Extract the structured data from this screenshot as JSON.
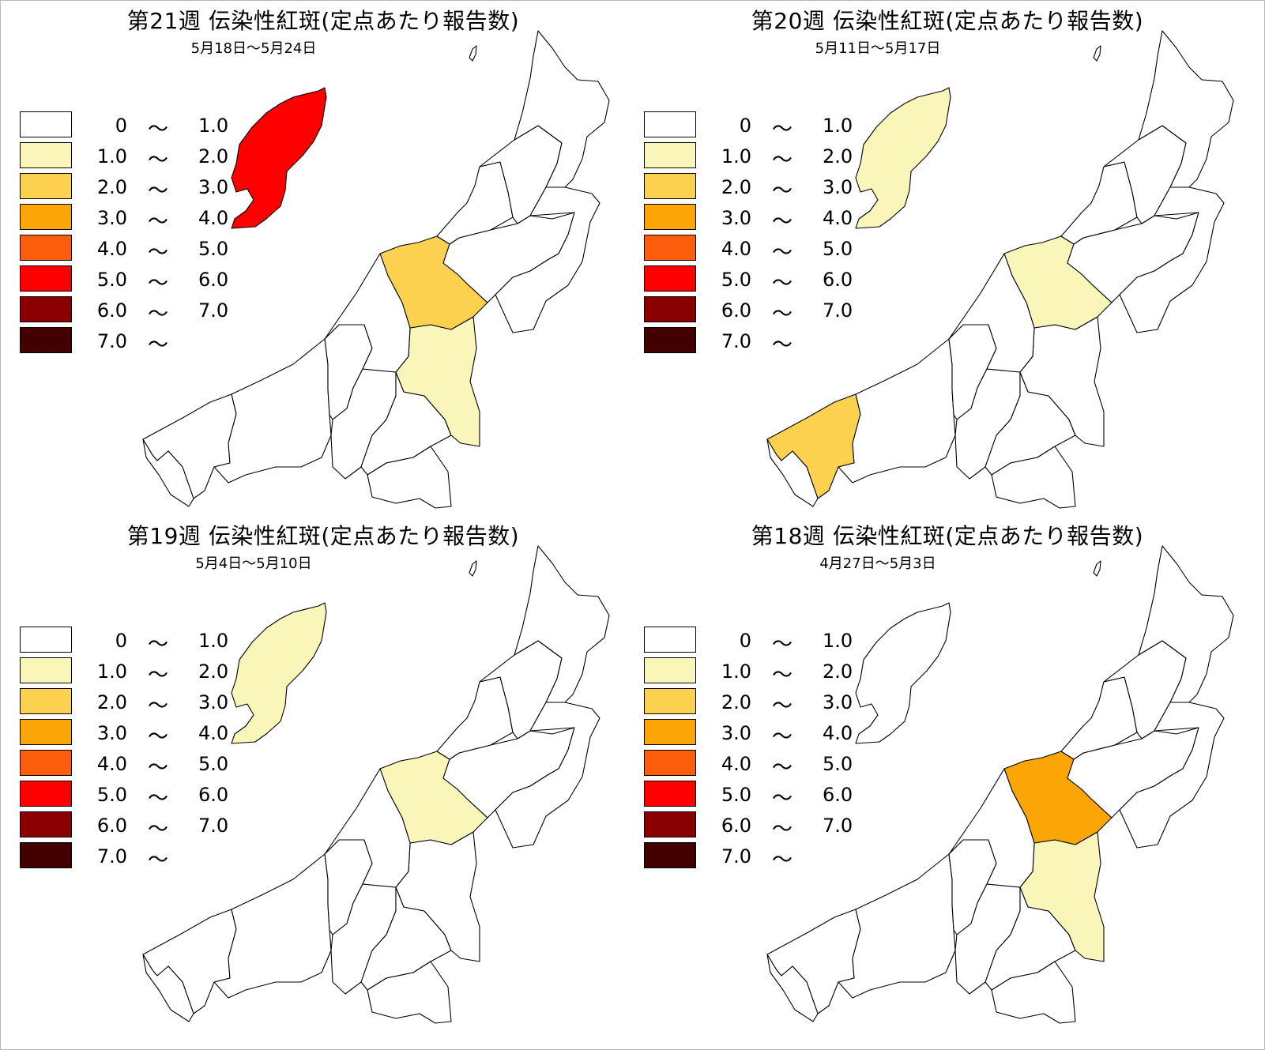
{
  "panels": [
    {
      "id": "w21",
      "title": "第21週 伝染性紅斑(定点あたり報告数)",
      "period": "5月18日～5月24日",
      "region_levels": {
        "sado": 5,
        "r_kashiwazaki_n": 2,
        "r_nagaoka": 1,
        "r_joetsu": 0
      }
    },
    {
      "id": "w20",
      "title": "第20週 伝染性紅斑(定点あたり報告数)",
      "period": "5月11日～5月17日",
      "region_levels": {
        "sado": 1,
        "r_kashiwazaki_n": 1,
        "r_nagaoka": 0,
        "r_joetsu": 2
      }
    },
    {
      "id": "w19",
      "title": "第19週 伝染性紅斑(定点あたり報告数)",
      "period": "5月4日～5月10日",
      "region_levels": {
        "sado": 1,
        "r_kashiwazaki_n": 1,
        "r_nagaoka": 0,
        "r_joetsu": 0
      }
    },
    {
      "id": "w18",
      "title": "第18週 伝染性紅斑(定点あたり報告数)",
      "period": "4月27日～5月3日",
      "region_levels": {
        "sado": 0,
        "r_kashiwazaki_n": 3,
        "r_nagaoka": 1,
        "r_joetsu": 0
      }
    }
  ],
  "legend": [
    {
      "from": "0",
      "tilde": "～",
      "to": "1.0",
      "color": "#ffffff"
    },
    {
      "from": "1.0",
      "tilde": "～",
      "to": "2.0",
      "color": "#faf5b9"
    },
    {
      "from": "2.0",
      "tilde": "～",
      "to": "3.0",
      "color": "#fdd150"
    },
    {
      "from": "3.0",
      "tilde": "～",
      "to": "4.0",
      "color": "#fca606"
    },
    {
      "from": "4.0",
      "tilde": "～",
      "to": "5.0",
      "color": "#fd5e0e"
    },
    {
      "from": "5.0",
      "tilde": "～",
      "to": "6.0",
      "color": "#fe0000"
    },
    {
      "from": "6.0",
      "tilde": "～",
      "to": "7.0",
      "color": "#8a0000"
    },
    {
      "from": "7.0",
      "tilde": "～",
      "to": "",
      "color": "#430000"
    }
  ]
}
